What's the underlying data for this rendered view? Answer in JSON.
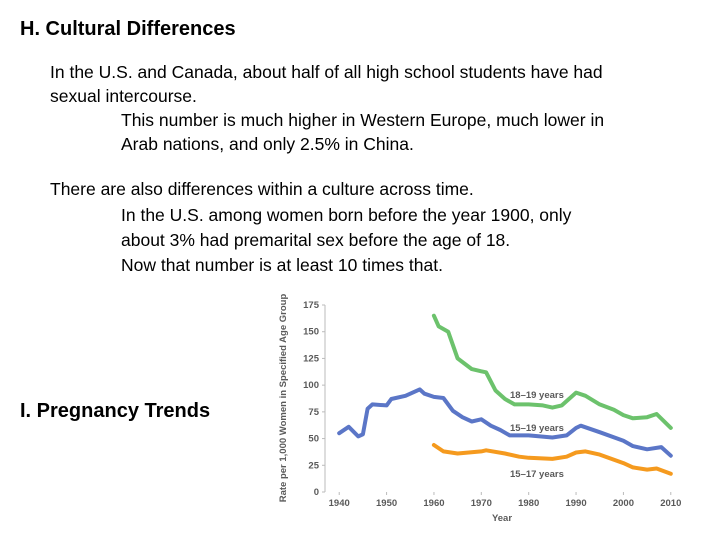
{
  "header": {
    "title": "H. Cultural Differences"
  },
  "body": {
    "lines": [
      "In the U.S. and Canada, about half of all high school students have had",
      "sexual intercourse.",
      "This number is much higher in Western Europe, much lower in",
      "Arab nations, and only 2.5% in China.",
      "There are also differences within a culture across time.",
      "In the U.S. among women born before the year 1900, only",
      "about 3% had premarital sex before the age of 18.",
      "Now that number is at least 10 times that."
    ]
  },
  "section": {
    "title": "I. Pregnancy Trends"
  },
  "chart_data": {
    "type": "line",
    "x_label": "Year",
    "y_label": "Rate per 1,000 Women in Specified Age Group",
    "xlim": [
      1937,
      2013
    ],
    "xticks": [
      1940,
      1950,
      1960,
      1970,
      1980,
      1990,
      2000,
      2010
    ],
    "ylim": [
      0,
      175
    ],
    "yticks": [
      0,
      25,
      50,
      75,
      100,
      125,
      150,
      175
    ],
    "grid": false,
    "series": [
      {
        "name": "18–19 years",
        "color": "#6cc26c",
        "x": [
          1960,
          1961,
          1963,
          1965,
          1968,
          1970,
          1971,
          1973,
          1975,
          1977,
          1980,
          1983,
          1985,
          1987,
          1990,
          1992,
          1995,
          1998,
          2000,
          2002,
          2005,
          2007,
          2010
        ],
        "values": [
          165,
          155,
          150,
          125,
          115,
          113,
          112,
          95,
          87,
          82,
          82,
          81,
          79,
          81,
          93,
          90,
          82,
          77,
          72,
          69,
          70,
          73,
          60
        ]
      },
      {
        "name": "15–19 years",
        "color": "#5b76c7",
        "x": [
          1940,
          1942,
          1944,
          1945,
          1946,
          1947,
          1950,
          1951,
          1954,
          1957,
          1958,
          1960,
          1962,
          1964,
          1966,
          1968,
          1970,
          1972,
          1974,
          1976,
          1980,
          1985,
          1988,
          1990,
          1991,
          1995,
          2000,
          2002,
          2005,
          2008,
          2010
        ],
        "values": [
          55,
          61,
          52,
          54,
          78,
          82,
          81,
          87,
          90,
          96,
          92,
          89,
          88,
          76,
          70,
          66,
          68,
          62,
          58,
          53,
          53,
          51,
          53,
          60,
          62,
          56,
          48,
          43,
          40,
          42,
          34
        ]
      },
      {
        "name": "15–17 years",
        "color": "#f59a1e",
        "x": [
          1960,
          1962,
          1965,
          1970,
          1971,
          1975,
          1978,
          1980,
          1985,
          1988,
          1990,
          1992,
          1995,
          2000,
          2002,
          2005,
          2007,
          2010
        ],
        "values": [
          44,
          38,
          36,
          38,
          39,
          36,
          33,
          32,
          31,
          33,
          37,
          38,
          35,
          27,
          23,
          21,
          22,
          17
        ]
      }
    ]
  }
}
